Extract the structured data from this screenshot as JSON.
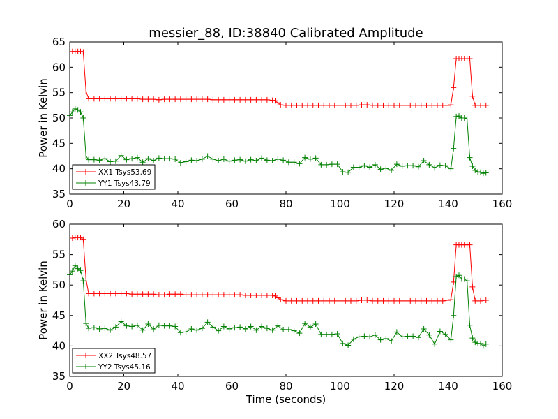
{
  "title": "messier_88, ID:38840 Calibrated Amplitude",
  "colors": {
    "red": "#ff0000",
    "green": "#008000",
    "axis": "#000000"
  },
  "chart_data": [
    {
      "type": "line",
      "title": "messier_88, ID:38840 Calibrated Amplitude",
      "xlabel": "",
      "ylabel": "Power in Kelvin",
      "xlim": [
        0,
        160
      ],
      "ylim": [
        35,
        65
      ],
      "xticks": [
        0,
        20,
        40,
        60,
        80,
        100,
        120,
        140,
        160
      ],
      "yticks": [
        35,
        40,
        45,
        50,
        55,
        60,
        65
      ],
      "grid": false,
      "legend_placement": "lower-left",
      "series": [
        {
          "name": "XX1 Tsys53.69",
          "color": "#ff0000",
          "marker": "+",
          "x": [
            1,
            2,
            3,
            4,
            5,
            6,
            7,
            9,
            11,
            13,
            15,
            17,
            19,
            21,
            23,
            25,
            27,
            29,
            31,
            33,
            35,
            37,
            39,
            41,
            43,
            45,
            47,
            49,
            51,
            53,
            55,
            57,
            59,
            61,
            63,
            65,
            67,
            69,
            71,
            73,
            75,
            76,
            77,
            78,
            80,
            82,
            84,
            86,
            88,
            90,
            92,
            94,
            96,
            98,
            100,
            102,
            104,
            106,
            108,
            110,
            112,
            114,
            116,
            118,
            120,
            122,
            124,
            126,
            128,
            130,
            132,
            134,
            136,
            138,
            140,
            141,
            142,
            143,
            144,
            145,
            146,
            147,
            148,
            149,
            150,
            152,
            154
          ],
          "y": [
            63.1,
            63.1,
            63.1,
            63.1,
            63.0,
            55.3,
            53.8,
            53.8,
            53.8,
            53.8,
            53.8,
            53.8,
            53.8,
            53.8,
            53.8,
            53.8,
            53.7,
            53.7,
            53.7,
            53.6,
            53.7,
            53.7,
            53.7,
            53.7,
            53.7,
            53.7,
            53.7,
            53.7,
            53.7,
            53.6,
            53.6,
            53.6,
            53.6,
            53.6,
            53.6,
            53.6,
            53.6,
            53.6,
            53.6,
            53.6,
            53.5,
            53.4,
            53.0,
            52.6,
            52.5,
            52.5,
            52.5,
            52.5,
            52.5,
            52.5,
            52.5,
            52.5,
            52.5,
            52.5,
            52.5,
            52.5,
            52.5,
            52.5,
            52.6,
            52.6,
            52.5,
            52.5,
            52.5,
            52.5,
            52.5,
            52.5,
            52.5,
            52.5,
            52.5,
            52.5,
            52.5,
            52.5,
            52.5,
            52.5,
            52.5,
            52.6,
            56.0,
            61.7,
            61.7,
            61.7,
            61.7,
            61.7,
            61.7,
            54.3,
            52.5,
            52.5,
            52.5
          ]
        },
        {
          "name": "YY1 Tsys43.79",
          "color": "#008000",
          "marker": "+",
          "x": [
            0,
            1,
            2,
            3,
            4,
            5,
            6,
            7,
            9,
            11,
            13,
            15,
            17,
            19,
            21,
            23,
            25,
            27,
            29,
            31,
            33,
            35,
            37,
            39,
            41,
            43,
            45,
            47,
            49,
            51,
            53,
            55,
            57,
            59,
            61,
            63,
            65,
            67,
            69,
            71,
            73,
            75,
            77,
            79,
            81,
            83,
            85,
            87,
            89,
            91,
            93,
            95,
            97,
            99,
            101,
            103,
            105,
            107,
            109,
            111,
            113,
            115,
            117,
            119,
            121,
            123,
            125,
            127,
            129,
            131,
            133,
            135,
            137,
            139,
            141,
            142,
            143,
            144,
            145,
            146,
            147,
            148,
            149,
            150,
            151,
            152,
            153,
            154
          ],
          "y": [
            50.5,
            51.2,
            51.8,
            51.6,
            51.2,
            50.0,
            42.5,
            41.8,
            41.8,
            41.7,
            42.0,
            41.4,
            41.5,
            42.6,
            41.8,
            42.0,
            42.2,
            41.3,
            42.0,
            41.6,
            42.1,
            42.0,
            42.0,
            41.9,
            41.2,
            41.4,
            41.7,
            41.6,
            41.9,
            42.5,
            41.9,
            41.6,
            41.9,
            41.5,
            41.7,
            41.8,
            41.5,
            41.8,
            41.6,
            42.1,
            41.7,
            41.6,
            41.9,
            41.7,
            41.3,
            41.3,
            41.0,
            42.2,
            41.9,
            42.1,
            40.8,
            40.8,
            40.9,
            40.9,
            39.4,
            39.3,
            40.3,
            40.3,
            40.6,
            40.3,
            40.8,
            39.9,
            40.1,
            39.7,
            40.9,
            40.5,
            40.6,
            40.6,
            40.4,
            41.6,
            40.8,
            40.2,
            40.7,
            40.6,
            40.0,
            44.0,
            50.3,
            50.4,
            50.0,
            50.0,
            49.8,
            42.2,
            40.5,
            39.7,
            39.4,
            39.3,
            39.1,
            39.2
          ]
        }
      ]
    },
    {
      "type": "line",
      "title": "",
      "xlabel": "Time (seconds)",
      "ylabel": "Power in Kelvin",
      "xlim": [
        0,
        160
      ],
      "ylim": [
        35,
        60
      ],
      "xticks": [
        0,
        20,
        40,
        60,
        80,
        100,
        120,
        140,
        160
      ],
      "yticks": [
        35,
        40,
        45,
        50,
        55,
        60
      ],
      "grid": false,
      "legend_placement": "lower-left",
      "series": [
        {
          "name": "XX2 Tsys48.57",
          "color": "#ff0000",
          "marker": "+",
          "x": [
            1,
            2,
            3,
            4,
            5,
            6,
            7,
            9,
            11,
            13,
            15,
            17,
            19,
            21,
            23,
            25,
            27,
            29,
            31,
            33,
            35,
            37,
            39,
            41,
            43,
            45,
            47,
            49,
            51,
            53,
            55,
            57,
            59,
            61,
            63,
            65,
            67,
            69,
            71,
            73,
            75,
            76,
            77,
            78,
            80,
            82,
            84,
            86,
            88,
            90,
            92,
            94,
            96,
            98,
            100,
            102,
            104,
            106,
            108,
            110,
            112,
            114,
            116,
            118,
            120,
            122,
            124,
            126,
            128,
            130,
            132,
            134,
            136,
            138,
            140,
            141,
            142,
            143,
            144,
            145,
            146,
            147,
            148,
            149,
            150,
            152,
            154
          ],
          "y": [
            57.7,
            57.8,
            57.8,
            57.8,
            57.5,
            51.0,
            48.6,
            48.6,
            48.6,
            48.6,
            48.6,
            48.6,
            48.6,
            48.6,
            48.5,
            48.5,
            48.5,
            48.5,
            48.5,
            48.4,
            48.4,
            48.5,
            48.5,
            48.5,
            48.4,
            48.4,
            48.4,
            48.4,
            48.4,
            48.4,
            48.4,
            48.4,
            48.4,
            48.4,
            48.4,
            48.3,
            48.3,
            48.3,
            48.3,
            48.3,
            48.3,
            48.2,
            47.9,
            47.6,
            47.4,
            47.4,
            47.4,
            47.4,
            47.4,
            47.4,
            47.4,
            47.4,
            47.4,
            47.4,
            47.4,
            47.4,
            47.4,
            47.4,
            47.5,
            47.5,
            47.4,
            47.4,
            47.4,
            47.4,
            47.4,
            47.4,
            47.4,
            47.4,
            47.4,
            47.4,
            47.4,
            47.4,
            47.4,
            47.4,
            47.5,
            47.6,
            50.5,
            56.6,
            56.6,
            56.6,
            56.6,
            56.6,
            56.6,
            49.7,
            47.4,
            47.4,
            47.5
          ]
        },
        {
          "name": "YY2 Tsys45.16",
          "color": "#008000",
          "marker": "+",
          "x": [
            0,
            1,
            2,
            3,
            4,
            5,
            6,
            7,
            9,
            11,
            13,
            15,
            17,
            19,
            21,
            23,
            25,
            27,
            29,
            31,
            33,
            35,
            37,
            39,
            41,
            43,
            45,
            47,
            49,
            51,
            53,
            55,
            57,
            59,
            61,
            63,
            65,
            67,
            69,
            71,
            73,
            75,
            77,
            79,
            81,
            83,
            85,
            87,
            89,
            91,
            93,
            95,
            97,
            99,
            101,
            103,
            105,
            107,
            109,
            111,
            113,
            115,
            117,
            119,
            121,
            123,
            125,
            127,
            129,
            131,
            133,
            135,
            137,
            139,
            141,
            142,
            143,
            144,
            145,
            146,
            147,
            148,
            149,
            150,
            151,
            152,
            153,
            154
          ],
          "y": [
            51.7,
            52.3,
            53.2,
            52.7,
            52.4,
            50.7,
            43.7,
            42.9,
            43.0,
            42.8,
            42.9,
            42.6,
            43.1,
            44.0,
            43.3,
            43.2,
            43.4,
            42.6,
            43.6,
            42.8,
            43.4,
            43.3,
            43.3,
            43.2,
            42.2,
            42.3,
            42.8,
            42.6,
            42.9,
            43.9,
            43.1,
            42.5,
            43.2,
            42.8,
            43.0,
            43.1,
            42.8,
            43.2,
            42.6,
            43.2,
            42.9,
            42.6,
            43.3,
            42.7,
            42.7,
            42.5,
            42.1,
            43.7,
            43.1,
            43.6,
            41.9,
            41.9,
            41.9,
            42.0,
            40.4,
            40.1,
            41.1,
            41.5,
            41.6,
            41.5,
            41.8,
            41.0,
            41.2,
            40.8,
            42.3,
            41.5,
            41.6,
            41.6,
            41.4,
            42.8,
            41.8,
            40.3,
            42.4,
            41.9,
            41.0,
            45.0,
            51.4,
            51.6,
            51.0,
            51.0,
            50.7,
            43.4,
            41.3,
            40.6,
            40.4,
            40.4,
            40.0,
            40.3
          ]
        }
      ]
    }
  ]
}
